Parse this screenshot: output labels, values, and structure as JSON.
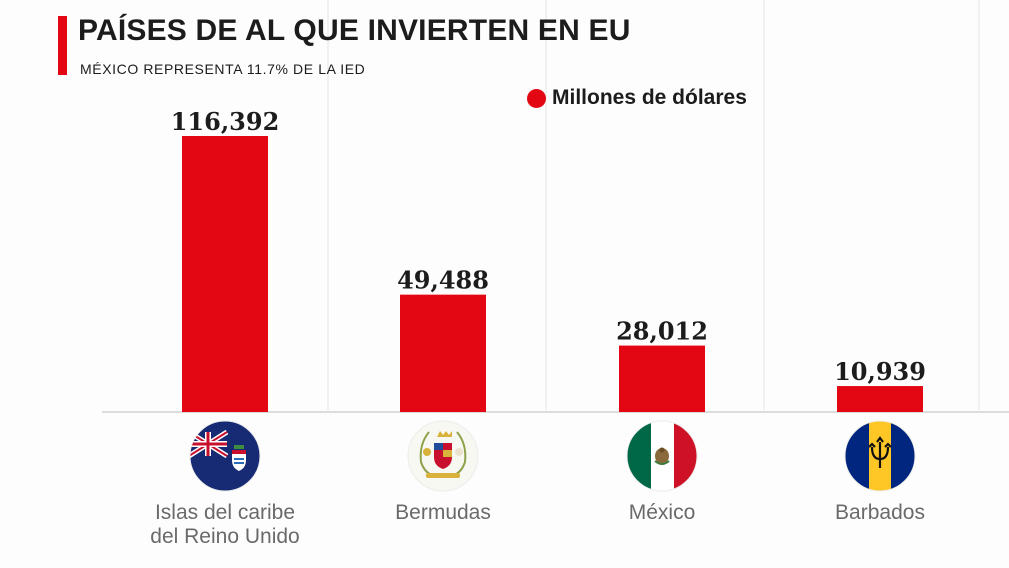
{
  "title": "PAÍSES DE AL QUE INVIERTEN EN EU",
  "subtitle": "MÉXICO REPRESENTA 11.7% DE LA IED",
  "legend": {
    "label": "Millones de dólares",
    "color": "#e30613"
  },
  "chart_data": {
    "type": "bar",
    "categories": [
      "Islas del caribe del Reino Unido",
      "Bermudas",
      "México",
      "Barbados"
    ],
    "category_label_lines": [
      [
        "Islas del caribe",
        "del Reino Unido"
      ],
      [
        "Bermudas"
      ],
      [
        "México"
      ],
      [
        "Barbados"
      ]
    ],
    "series": [
      {
        "name": "Millones de dólares",
        "values": [
          116392,
          49488,
          28012,
          10939
        ]
      }
    ],
    "value_labels": [
      "116,392",
      "49,488",
      "28,012",
      "10,939"
    ],
    "flag_icons": [
      "cayman-islands-flag-icon",
      "bermuda-coat-of-arms-icon",
      "mexico-flag-icon",
      "barbados-flag-icon"
    ],
    "ylim": [
      0,
      116392
    ],
    "grid": false,
    "legend_position": "top-right",
    "bar_color": "#e30613"
  }
}
